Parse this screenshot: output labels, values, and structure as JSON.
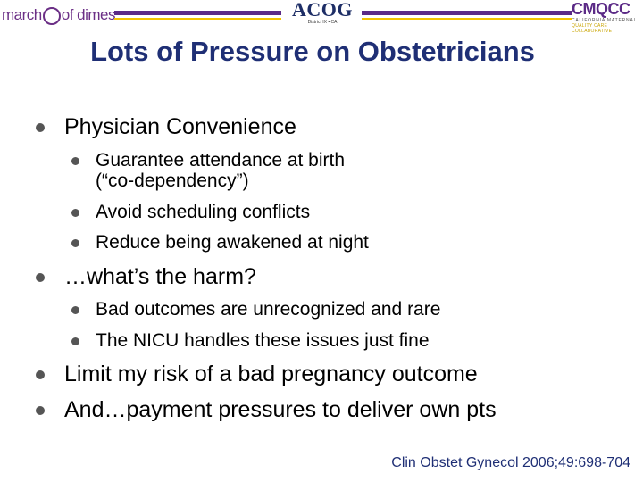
{
  "header": {
    "mod_logo": {
      "part1": "march",
      "part2": "of dimes"
    },
    "acog": {
      "mark": "ACOG",
      "district": "District IX • CA"
    },
    "cmqcc": {
      "mark": "CMQCC",
      "line1": "CALIFORNIA MATERNAL",
      "line2": "QUALITY CARE COLLABORATIVE"
    },
    "colors": {
      "purple": "#5b2a86",
      "gold": "#f3c300",
      "navy": "#1f2f75"
    }
  },
  "title": "Lots of Pressure on Obstetricians",
  "bullets": [
    {
      "text": "Physician Convenience"
    },
    {
      "text": "Guarantee attendance at birth"
    },
    {
      "text": "(“co-dependency”)"
    },
    {
      "text": "Avoid scheduling conflicts"
    },
    {
      "text": "Reduce being awakened at night"
    },
    {
      "text": "…what’s the harm?"
    },
    {
      "text": "Bad outcomes are unrecognized and rare"
    },
    {
      "text": "The NICU handles these issues just fine"
    },
    {
      "text": "Limit my risk of a bad pregnancy outcome"
    },
    {
      "text": "And…payment pressures to deliver own pts"
    }
  ],
  "citation": "Clin Obstet Gynecol 2006;49:698-704"
}
